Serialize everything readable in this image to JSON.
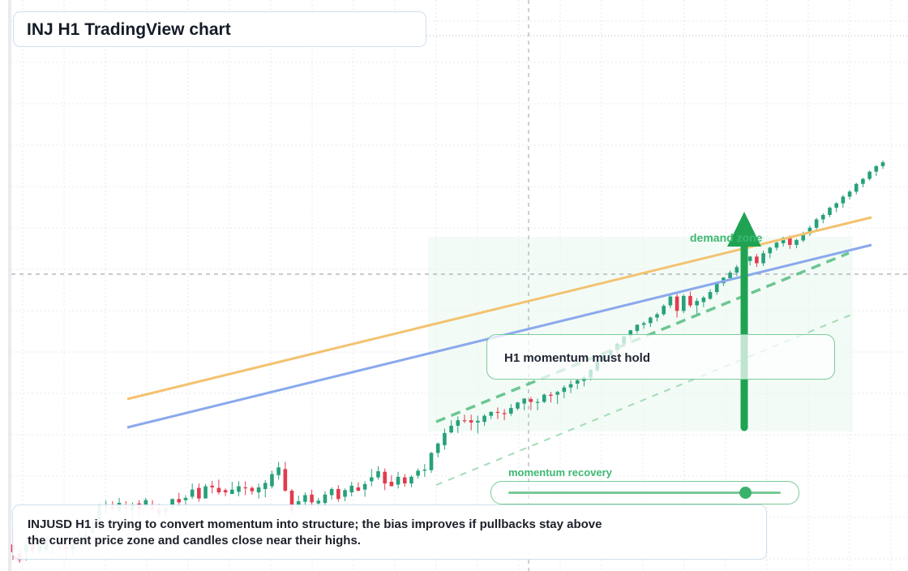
{
  "header": {
    "title": "INJ H1 TradingView chart"
  },
  "annotations": {
    "zone_label": "demand zone",
    "momentum_box": "H1 momentum must hold",
    "momentum_slider_label": "momentum recovery",
    "momentum_slider_value": 0.87
  },
  "description": "INJUSD H1 is trying to convert momentum into structure; the bias improves if pullbacks stay above the current price zone and candles close near their highs.",
  "colors": {
    "up": "#26a17b",
    "down": "#e23b4e",
    "trendline_orange": "#f3c26f",
    "trendline_blue": "#8aa9ec",
    "accent_green": "#1fa352",
    "zone_fill": "#eaf8ee"
  },
  "icons": {
    "arrow": "up-arrow-icon"
  },
  "chart_data": {
    "type": "candlestick",
    "title": "INJ H1 TradingView chart",
    "xlabel": "",
    "ylabel": "",
    "grid": true,
    "ylim": [
      0,
      100
    ],
    "candles": [
      [
        3.9,
        6.5,
        1.1,
        2.5
      ],
      [
        2.3,
        3.1,
        0.6,
        1.1
      ],
      [
        2.5,
        4.8,
        1.0,
        4.0
      ],
      [
        4.3,
        5.1,
        2.3,
        2.8
      ],
      [
        2.7,
        4.7,
        1.9,
        3.8
      ],
      [
        2.9,
        5.2,
        2.3,
        4.8
      ],
      [
        4.0,
        5.2,
        2.1,
        4.2
      ],
      [
        3.6,
        4.2,
        2.8,
        3.3
      ],
      [
        3.4,
        4.0,
        1.5,
        3.1
      ],
      [
        3.0,
        4.9,
        1.8,
        4.2
      ],
      [
        4.3,
        6.4,
        3.5,
        5.2
      ],
      [
        4.9,
        6.6,
        3.7,
        5.6
      ],
      [
        6.0,
        7.9,
        5.6,
        7.2
      ],
      [
        7.6,
        11.2,
        6.4,
        11.0
      ],
      [
        10.7,
        11.8,
        9.3,
        10.8
      ],
      [
        10.7,
        11.7,
        9.5,
        10.3
      ],
      [
        9.9,
        12.3,
        9.7,
        11.4
      ],
      [
        10.7,
        11.7,
        9.7,
        10.6
      ],
      [
        10.1,
        11.5,
        8.5,
        11.1
      ],
      [
        11.3,
        11.9,
        8.9,
        10.3
      ],
      [
        10.8,
        12.3,
        10.3,
        11.9
      ],
      [
        10.5,
        11.9,
        9.7,
        10.3
      ],
      [
        10.2,
        11.2,
        8.8,
        9.5
      ],
      [
        9.7,
        10.8,
        8.9,
        10.5
      ],
      [
        10.4,
        12.2,
        10.1,
        12.1
      ],
      [
        12.1,
        13.2,
        10.5,
        11.5
      ],
      [
        11.9,
        12.8,
        9.7,
        12.3
      ],
      [
        12.5,
        14.9,
        12.1,
        13.8
      ],
      [
        14.1,
        14.9,
        11.6,
        12.2
      ],
      [
        12.2,
        14.8,
        12.2,
        14.4
      ],
      [
        14.5,
        15.4,
        13.1,
        14.2
      ],
      [
        14.1,
        15.6,
        12.9,
        13.3
      ],
      [
        13.7,
        14.0,
        12.6,
        13.3
      ],
      [
        13.0,
        15.2,
        13.0,
        13.8
      ],
      [
        13.4,
        15.3,
        12.6,
        14.4
      ],
      [
        14.2,
        15.3,
        12.8,
        14.1
      ],
      [
        14.1,
        14.4,
        12.9,
        13.5
      ],
      [
        13.3,
        14.9,
        12.2,
        14.2
      ],
      [
        13.9,
        15.5,
        12.4,
        15.0
      ],
      [
        14.4,
        17.2,
        14.0,
        16.6
      ],
      [
        16.4,
        18.8,
        15.6,
        17.8
      ],
      [
        17.5,
        18.8,
        13.4,
        13.6
      ],
      [
        13.6,
        13.9,
        9.5,
        10.0
      ],
      [
        10.5,
        12.7,
        9.9,
        11.7
      ],
      [
        11.6,
        13.3,
        10.4,
        12.8
      ],
      [
        12.9,
        13.8,
        10.4,
        11.5
      ],
      [
        11.3,
        12.3,
        9.7,
        11.8
      ],
      [
        11.4,
        13.5,
        9.8,
        12.9
      ],
      [
        12.8,
        14.2,
        12.0,
        13.9
      ],
      [
        13.9,
        14.6,
        11.6,
        12.1
      ],
      [
        12.5,
        14.0,
        11.7,
        13.7
      ],
      [
        13.3,
        15.2,
        12.6,
        14.5
      ],
      [
        14.2,
        15.1,
        13.5,
        13.6
      ],
      [
        13.8,
        15.3,
        12.5,
        14.8
      ],
      [
        15.3,
        17.5,
        14.4,
        16.0
      ],
      [
        16.0,
        18.0,
        15.6,
        17.1
      ],
      [
        17.0,
        17.6,
        13.7,
        14.9
      ],
      [
        15.2,
        16.4,
        14.5,
        14.4
      ],
      [
        14.7,
        17.0,
        14.0,
        16.1
      ],
      [
        16.0,
        16.6,
        14.3,
        14.9
      ],
      [
        14.9,
        16.4,
        14.2,
        16.1
      ],
      [
        16.3,
        17.6,
        15.8,
        17.2
      ],
      [
        17.2,
        18.4,
        16.1,
        17.4
      ],
      [
        17.3,
        20.6,
        16.8,
        20.4
      ],
      [
        20.4,
        22.3,
        19.6,
        22.1
      ],
      [
        21.8,
        24.8,
        21.0,
        24.0
      ],
      [
        24.1,
        26.3,
        23.9,
        25.3
      ],
      [
        25.3,
        27.0,
        24.0,
        26.3
      ],
      [
        26.3,
        27.3,
        25.8,
        26.2
      ],
      [
        26.3,
        27.3,
        24.5,
        25.9
      ],
      [
        25.9,
        27.1,
        23.9,
        26.2
      ],
      [
        26.0,
        27.4,
        25.3,
        27.1
      ],
      [
        27.1,
        27.9,
        26.5,
        27.8
      ],
      [
        27.8,
        28.6,
        26.5,
        27.7
      ],
      [
        27.6,
        28.3,
        26.3,
        27.4
      ],
      [
        27.5,
        29.2,
        27.1,
        28.5
      ],
      [
        28.4,
        29.6,
        28.1,
        29.5
      ],
      [
        29.3,
        30.3,
        28.1,
        30.2
      ],
      [
        30.1,
        30.5,
        28.1,
        29.6
      ],
      [
        29.6,
        30.2,
        28.1,
        29.6
      ],
      [
        29.6,
        31.1,
        29.4,
        30.9
      ],
      [
        30.9,
        31.4,
        29.5,
        30.7
      ],
      [
        30.9,
        31.6,
        29.2,
        31.4
      ],
      [
        31.4,
        32.6,
        30.3,
        32.2
      ],
      [
        32.2,
        33.5,
        31.2,
        32.8
      ],
      [
        32.9,
        33.8,
        31.9,
        33.5
      ],
      [
        33.4,
        34.4,
        32.4,
        34.0
      ],
      [
        34.0,
        35.5,
        33.5,
        35.4
      ],
      [
        35.3,
        37.1,
        35.0,
        36.8
      ],
      [
        37.0,
        38.3,
        36.3,
        38.0
      ],
      [
        38.0,
        39.1,
        37.4,
        38.9
      ],
      [
        39.0,
        40.3,
        38.3,
        40.1
      ],
      [
        40.1,
        41.6,
        39.5,
        41.4
      ],
      [
        41.5,
        42.6,
        40.8,
        42.5
      ],
      [
        42.4,
        43.6,
        41.9,
        43.5
      ],
      [
        43.5,
        44.1,
        42.8,
        43.8
      ],
      [
        43.8,
        45.0,
        43.1,
        44.8
      ],
      [
        44.8,
        45.7,
        44.1,
        45.4
      ],
      [
        45.4,
        47.2,
        45.1,
        46.9
      ],
      [
        47.0,
        48.9,
        46.5,
        48.6
      ],
      [
        48.6,
        49.1,
        44.8,
        46.0
      ],
      [
        46.0,
        49.0,
        45.6,
        48.7
      ],
      [
        48.7,
        49.5,
        46.6,
        47.0
      ],
      [
        47.0,
        48.3,
        45.3,
        47.8
      ],
      [
        47.6,
        48.7,
        46.7,
        48.4
      ],
      [
        48.2,
        49.9,
        48.0,
        49.4
      ],
      [
        49.4,
        51.0,
        48.9,
        50.9
      ],
      [
        51.0,
        52.1,
        50.5,
        52.0
      ],
      [
        51.9,
        53.3,
        51.5,
        52.9
      ],
      [
        52.9,
        54.3,
        52.3,
        53.9
      ],
      [
        53.9,
        55.3,
        53.3,
        55.0
      ],
      [
        55.0,
        55.9,
        54.2,
        55.8
      ],
      [
        55.8,
        56.3,
        53.9,
        54.6
      ],
      [
        54.6,
        56.9,
        54.1,
        56.4
      ],
      [
        56.4,
        57.6,
        55.5,
        57.4
      ],
      [
        57.4,
        58.6,
        56.9,
        58.3
      ],
      [
        58.2,
        59.4,
        57.6,
        59.2
      ],
      [
        59.2,
        59.6,
        57.2,
        57.9
      ],
      [
        57.9,
        59.0,
        57.3,
        58.8
      ],
      [
        58.7,
        60.3,
        58.4,
        59.9
      ],
      [
        59.9,
        61.4,
        59.5,
        61.0
      ],
      [
        61.0,
        62.8,
        60.6,
        62.5
      ],
      [
        62.5,
        63.6,
        61.8,
        63.3
      ],
      [
        63.3,
        64.8,
        62.9,
        64.6
      ],
      [
        64.6,
        65.6,
        63.8,
        65.4
      ],
      [
        65.4,
        66.9,
        64.6,
        66.6
      ],
      [
        66.6,
        67.8,
        66.1,
        67.5
      ],
      [
        67.5,
        69.1,
        67.0,
        68.9
      ],
      [
        68.9,
        70.0,
        68.3,
        69.8
      ],
      [
        69.8,
        71.3,
        69.5,
        71.1
      ],
      [
        71.1,
        72.3,
        70.3,
        72.1
      ],
      [
        72.1,
        73.1,
        71.6,
        72.8
      ]
    ],
    "trendlines": [
      {
        "color": "orange",
        "from": [
          0,
          40.3
        ],
        "to": [
          1,
          80.0
        ]
      },
      {
        "color": "blue",
        "from": [
          0,
          33.6
        ],
        "to": [
          1,
          75.3
        ]
      }
    ]
  }
}
